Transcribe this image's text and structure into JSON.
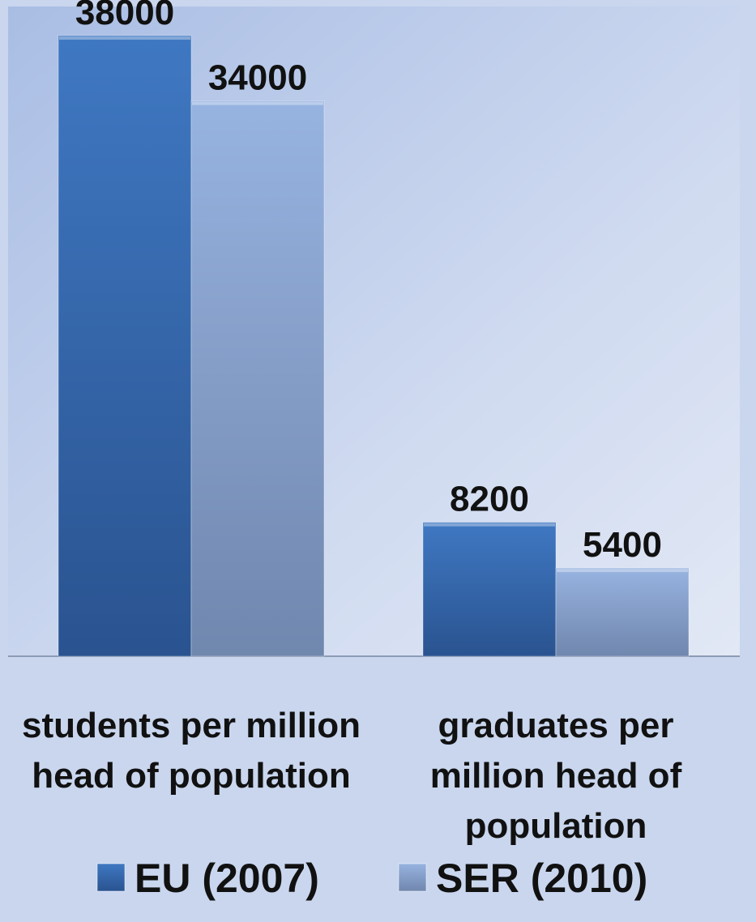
{
  "chart_data": {
    "type": "bar",
    "categories": [
      [
        "students per million",
        "head of population"
      ],
      [
        "graduates per",
        "million head  of",
        "population"
      ]
    ],
    "series": [
      {
        "name": "EU (2007)",
        "values": [
          38000,
          8200
        ],
        "color": "#3a6fb5"
      },
      {
        "name": "SER (2010)",
        "values": [
          34000,
          5400
        ],
        "color": "#8aa6d6"
      }
    ],
    "data_labels": [
      [
        "38000",
        "8200"
      ],
      [
        "34000",
        "5400"
      ]
    ],
    "ylim": [
      0,
      38000
    ],
    "grid": false,
    "legend_position": "bottom",
    "xlabel": "",
    "ylabel": ""
  }
}
